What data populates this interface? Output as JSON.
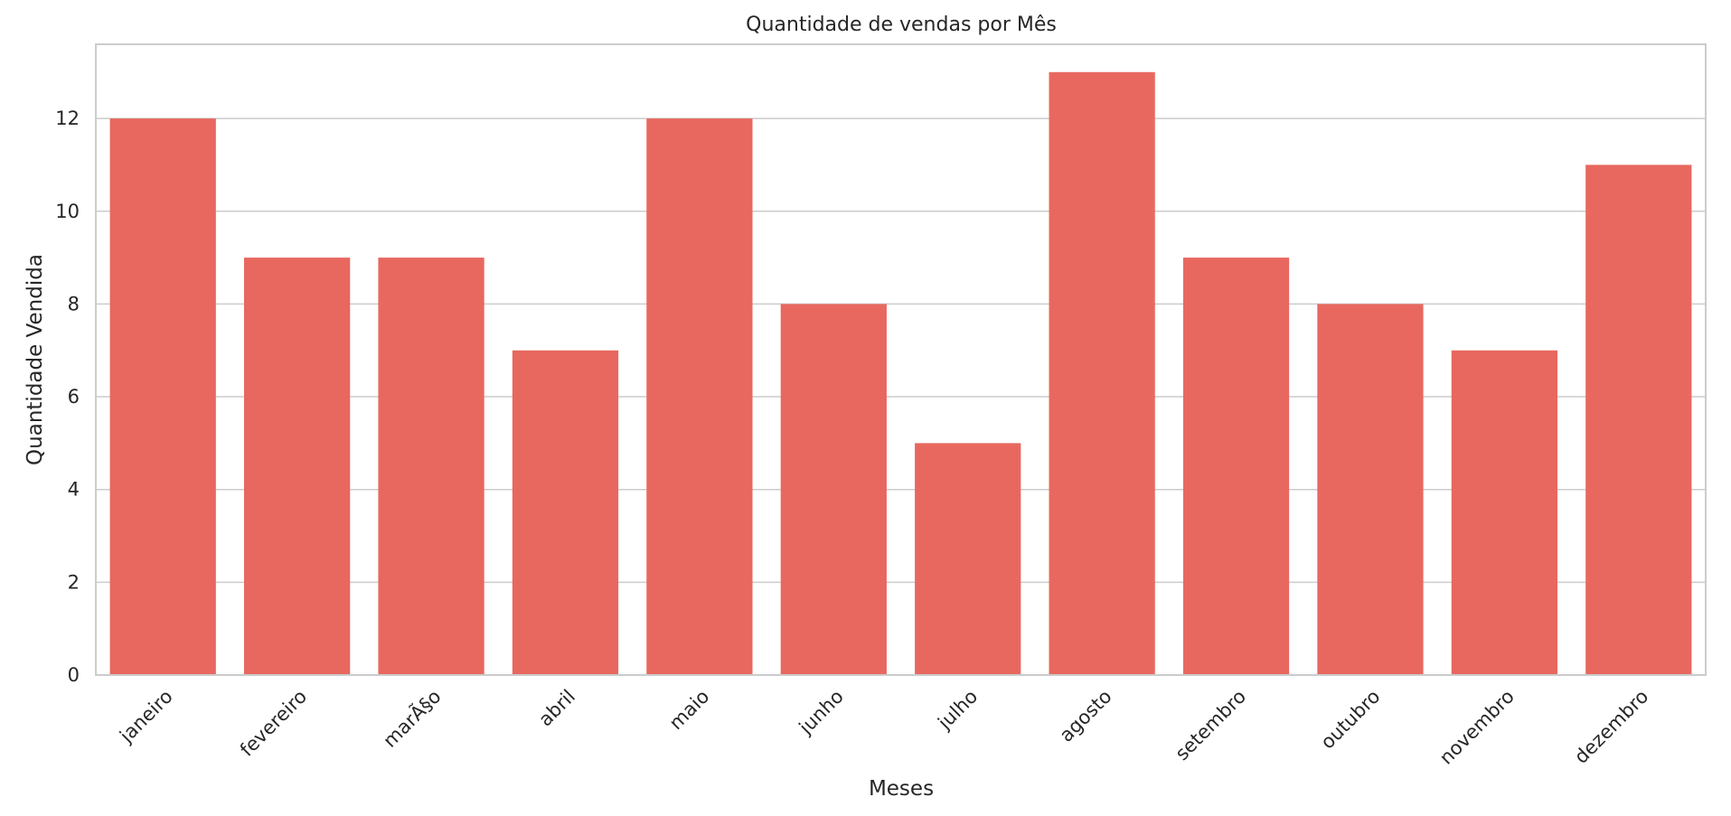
{
  "chart_data": {
    "type": "bar",
    "title": "Quantidade de vendas por Mês",
    "xlabel": "Meses",
    "ylabel": "Quantidade Vendida",
    "categories": [
      "janeiro",
      "fevereiro",
      "marÃ§o",
      "abril",
      "maio",
      "junho",
      "julho",
      "agosto",
      "setembro",
      "outubro",
      "novembro",
      "dezembro"
    ],
    "values": [
      12,
      9,
      9,
      7,
      12,
      8,
      5,
      13,
      9,
      8,
      7,
      11
    ],
    "ylim": [
      0,
      13.6
    ],
    "yticks": [
      0,
      2,
      4,
      6,
      8,
      10,
      12
    ],
    "grid": true,
    "legend": null,
    "bar_color": "#e8685f",
    "grid_color": "#cccccc",
    "x_tick_rotation": 45
  }
}
